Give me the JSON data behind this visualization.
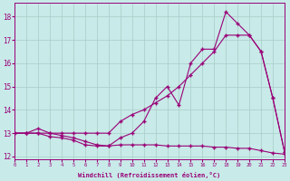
{
  "xlabel": "Windchill (Refroidissement éolien,°C)",
  "bg_color": "#c8eae8",
  "line_color": "#990077",
  "grid_color": "#a8ccc8",
  "xlim": [
    0,
    23
  ],
  "ylim": [
    11.9,
    18.6
  ],
  "yticks": [
    12,
    13,
    14,
    15,
    16,
    17,
    18
  ],
  "xticks": [
    0,
    1,
    2,
    3,
    4,
    5,
    6,
    7,
    8,
    9,
    10,
    11,
    12,
    13,
    14,
    15,
    16,
    17,
    18,
    19,
    20,
    21,
    22,
    23
  ],
  "line1_x": [
    0,
    1,
    2,
    3,
    4,
    5,
    6,
    7,
    8,
    9,
    10,
    11,
    12,
    13,
    14,
    15,
    16,
    17,
    18,
    19,
    20,
    21,
    22,
    23
  ],
  "line1_y": [
    13.0,
    13.0,
    13.0,
    13.0,
    13.0,
    13.0,
    13.0,
    13.0,
    13.0,
    13.5,
    13.8,
    14.0,
    14.3,
    14.6,
    15.0,
    15.5,
    16.0,
    16.5,
    17.2,
    17.2,
    17.2,
    16.5,
    14.5,
    12.2
  ],
  "line2_x": [
    0,
    1,
    2,
    3,
    4,
    5,
    6,
    7,
    8,
    9,
    10,
    11,
    12,
    13,
    14,
    15,
    16,
    17,
    18,
    19,
    20,
    21,
    22,
    23
  ],
  "line2_y": [
    13.0,
    13.0,
    13.2,
    13.0,
    12.9,
    12.8,
    12.65,
    12.5,
    12.45,
    12.8,
    13.0,
    13.5,
    14.5,
    15.0,
    14.2,
    16.0,
    16.6,
    16.6,
    18.2,
    17.7,
    17.2,
    16.5,
    14.5,
    12.2
  ],
  "line3_x": [
    0,
    1,
    2,
    3,
    4,
    5,
    6,
    7,
    8,
    9,
    10,
    11,
    12,
    13,
    14,
    15,
    16,
    17,
    18,
    19,
    20,
    21,
    22,
    23
  ],
  "line3_y": [
    13.0,
    13.0,
    13.0,
    12.85,
    12.8,
    12.7,
    12.5,
    12.45,
    12.45,
    12.5,
    12.5,
    12.5,
    12.5,
    12.45,
    12.45,
    12.45,
    12.45,
    12.4,
    12.4,
    12.35,
    12.35,
    12.25,
    12.15,
    12.1
  ]
}
